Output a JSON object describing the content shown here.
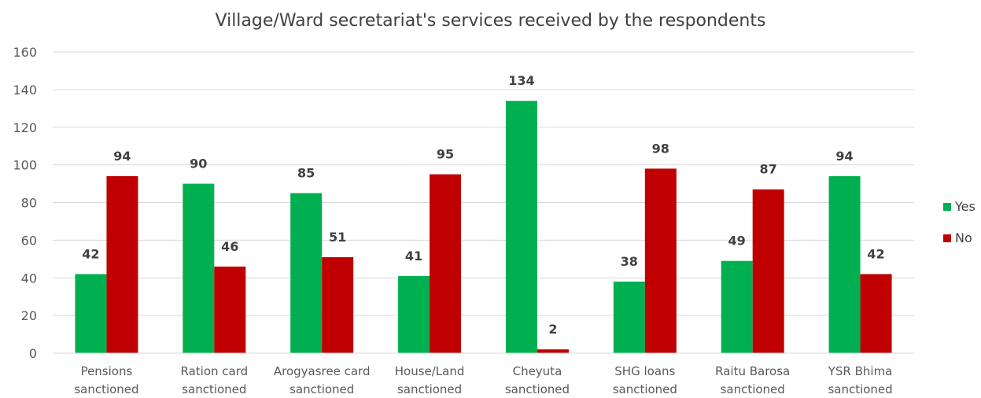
{
  "chart_data": {
    "type": "bar",
    "title": "Village/Ward secretariat's services received by the respondents",
    "categories": [
      [
        "Pensions",
        "sanctioned"
      ],
      [
        "Ration card",
        "sanctioned"
      ],
      [
        "Arogyasree card",
        "sanctioned"
      ],
      [
        "House/Land",
        "sanctioned"
      ],
      [
        "Cheyuta",
        "sanctioned"
      ],
      [
        "SHG loans",
        "sanctioned"
      ],
      [
        "Raitu Barosa",
        "sanctioned"
      ],
      [
        "YSR Bhima",
        "sanctioned"
      ]
    ],
    "series": [
      {
        "name": "Yes",
        "color": "#00B050",
        "values": [
          42,
          90,
          85,
          41,
          134,
          38,
          49,
          94
        ]
      },
      {
        "name": "No",
        "color": "#C00000",
        "values": [
          94,
          46,
          51,
          95,
          2,
          98,
          87,
          42
        ]
      }
    ],
    "ylim": [
      0,
      160
    ],
    "yticks": [
      0,
      20,
      40,
      60,
      80,
      100,
      120,
      140,
      160
    ],
    "grid": true,
    "legend": "right"
  }
}
